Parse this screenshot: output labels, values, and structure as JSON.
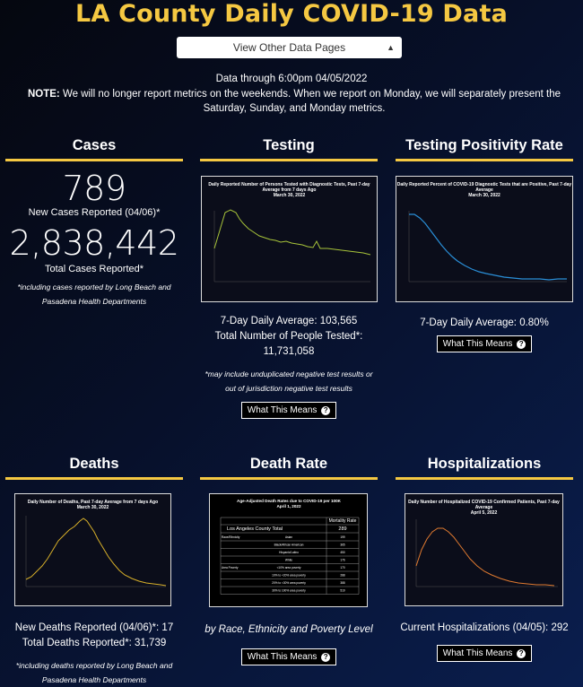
{
  "page": {
    "title": "LA County Daily COVID-19 Data",
    "select_label": "View Other Data Pages",
    "update": "Data through 6:00pm 04/05/2022",
    "note_label": "NOTE:",
    "note_text": " We will no longer report metrics on the weekends. When we report on Monday, we will separately present the Saturday, Sunday, and Monday metrics."
  },
  "cases": {
    "title": "Cases",
    "new_count": "789",
    "new_label": "New Cases Reported (04/06)*",
    "total_count": "2,838,442",
    "total_label": "Total Cases Reported*",
    "footnote": "*including cases reported by Long Beach and Pasadena Health Departments"
  },
  "testing": {
    "title": "Testing",
    "chart_title": "Daily Reported Number of Persons Tested with Diagnostic Tests, Past 7-day Average from 7 days Ago",
    "chart_date": "March 30, 2022",
    "avg": "7-Day Daily Average: 103,565",
    "total_label": "Total Number of People Tested*:",
    "total": "11,731,058",
    "footnote": "*may include unduplicated negative test results or out of jurisdiction negative test results",
    "button": "What This Means"
  },
  "positivity": {
    "title": "Testing Positivity Rate",
    "chart_title": "Daily Reported Percent of COVID-19 Diagnostic Tests that are Positive, Past 7-day Average",
    "chart_date": "March 30, 2022",
    "avg": "7-Day Daily Average: 0.80%",
    "button": "What This Means"
  },
  "deaths": {
    "title": "Deaths",
    "chart_title": "Daily Number of Deaths, Past 7-day Average from 7 days Ago",
    "chart_date": "March 30, 2022",
    "new": "New Deaths Reported (04/06)*: 17",
    "total": "Total Deaths Reported*: 31,739",
    "footnote": "*including deaths reported by Long Beach and Pasadena Health Departments"
  },
  "death_rate": {
    "title": "Death Rate",
    "table_title": "Age-Adjusted Death Rates due to COVID-19 per 100K",
    "table_date": "April 1, 2022",
    "col_header": "Mortality Rate",
    "total_label": "Los Angeles County Total",
    "total_value": "289",
    "rows": [
      {
        "group": "Race/Ethnicity",
        "label": "Asian",
        "value": "199"
      },
      {
        "group": "",
        "label": "Black/African American",
        "value": "365"
      },
      {
        "group": "",
        "label": "Hispanic/Latino",
        "value": "450"
      },
      {
        "group": "",
        "label": "White",
        "value": "176"
      },
      {
        "group": "Area Poverty",
        "label": "<10% area poverty",
        "value": "170"
      },
      {
        "group": "",
        "label": "10% to <20% area poverty",
        "value": "288"
      },
      {
        "group": "",
        "label": "20% to <30% area poverty",
        "value": "388"
      },
      {
        "group": "",
        "label": "30% to 100% area poverty",
        "value": "519"
      }
    ],
    "caption": "by Race, Ethnicity and Poverty Level"
  },
  "hospital": {
    "title": "Hospitalizations",
    "chart_title": "Daily Number of Hospitalized COVID-19 Confirmed Patients, Past 7-day Average",
    "chart_date": "April 5, 2022",
    "current": "Current Hospitalizations (04/05): 292",
    "button": "What This Means"
  },
  "colors": {
    "accent": "#f5c842",
    "testing_line": "#a8c43a",
    "positivity_line": "#2a8fd8",
    "deaths_line": "#d8b02a",
    "hospital_line": "#e07a30"
  },
  "icons": {
    "button_icon": "question-circle-icon",
    "select_icon": "sort-arrows-icon"
  }
}
